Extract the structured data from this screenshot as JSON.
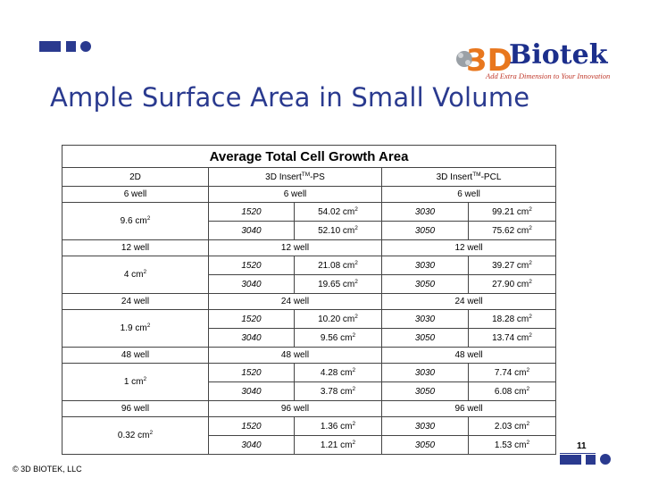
{
  "slide": {
    "title": "Ample Surface Area in Small Volume",
    "page_number": "11",
    "copyright": "© 3D BIOTEK, LLC"
  },
  "logo": {
    "name": "Biotek",
    "mark": "3D",
    "tagline": "Add Extra Dimension to Your Innovation"
  },
  "table": {
    "banner": "Average Total Cell Growth Area",
    "headers": {
      "col_2d": "2D",
      "ps": "3D Insert",
      "ps_sup": "TM",
      "ps_suffix": "-PS",
      "pcl": "3D Insert",
      "pcl_sup": "TM",
      "pcl_suffix": "-PCL"
    },
    "unit": "cm",
    "unit_sup": "2",
    "groups": [
      {
        "well": "6 well",
        "area_2d": "9.6 cm",
        "ps": [
          {
            "id": "1520",
            "value": "54.02 cm"
          },
          {
            "id": "3040",
            "value": "52.10 cm"
          }
        ],
        "pcl": [
          {
            "id": "3030",
            "value": "99.21 cm"
          },
          {
            "id": "3050",
            "value": "75.62 cm"
          }
        ]
      },
      {
        "well": "12 well",
        "area_2d": "4 cm",
        "ps": [
          {
            "id": "1520",
            "value": "21.08 cm"
          },
          {
            "id": "3040",
            "value": "19.65 cm"
          }
        ],
        "pcl": [
          {
            "id": "3030",
            "value": "39.27 cm"
          },
          {
            "id": "3050",
            "value": "27.90 cm"
          }
        ]
      },
      {
        "well": "24 well",
        "area_2d": "1.9 cm",
        "ps": [
          {
            "id": "1520",
            "value": "10.20 cm"
          },
          {
            "id": "3040",
            "value": "9.56 cm"
          }
        ],
        "pcl": [
          {
            "id": "3030",
            "value": "18.28 cm"
          },
          {
            "id": "3050",
            "value": "13.74 cm"
          }
        ]
      },
      {
        "well": "48 well",
        "area_2d": "1 cm",
        "ps": [
          {
            "id": "1520",
            "value": "4.28 cm"
          },
          {
            "id": "3040",
            "value": "3.78 cm"
          }
        ],
        "pcl": [
          {
            "id": "3030",
            "value": "7.74 cm"
          },
          {
            "id": "3050",
            "value": "6.08 cm"
          }
        ]
      },
      {
        "well": "96 well",
        "area_2d": "0.32 cm",
        "ps": [
          {
            "id": "1520",
            "value": "1.36 cm"
          },
          {
            "id": "3040",
            "value": "1.21 cm"
          }
        ],
        "pcl": [
          {
            "id": "3030",
            "value": "2.03 cm"
          },
          {
            "id": "3050",
            "value": "1.53 cm"
          }
        ]
      }
    ]
  },
  "colors": {
    "accent": "#2a3a8f",
    "logo_blue": "#1c2f8c",
    "logo_orange": "#e8771e"
  }
}
